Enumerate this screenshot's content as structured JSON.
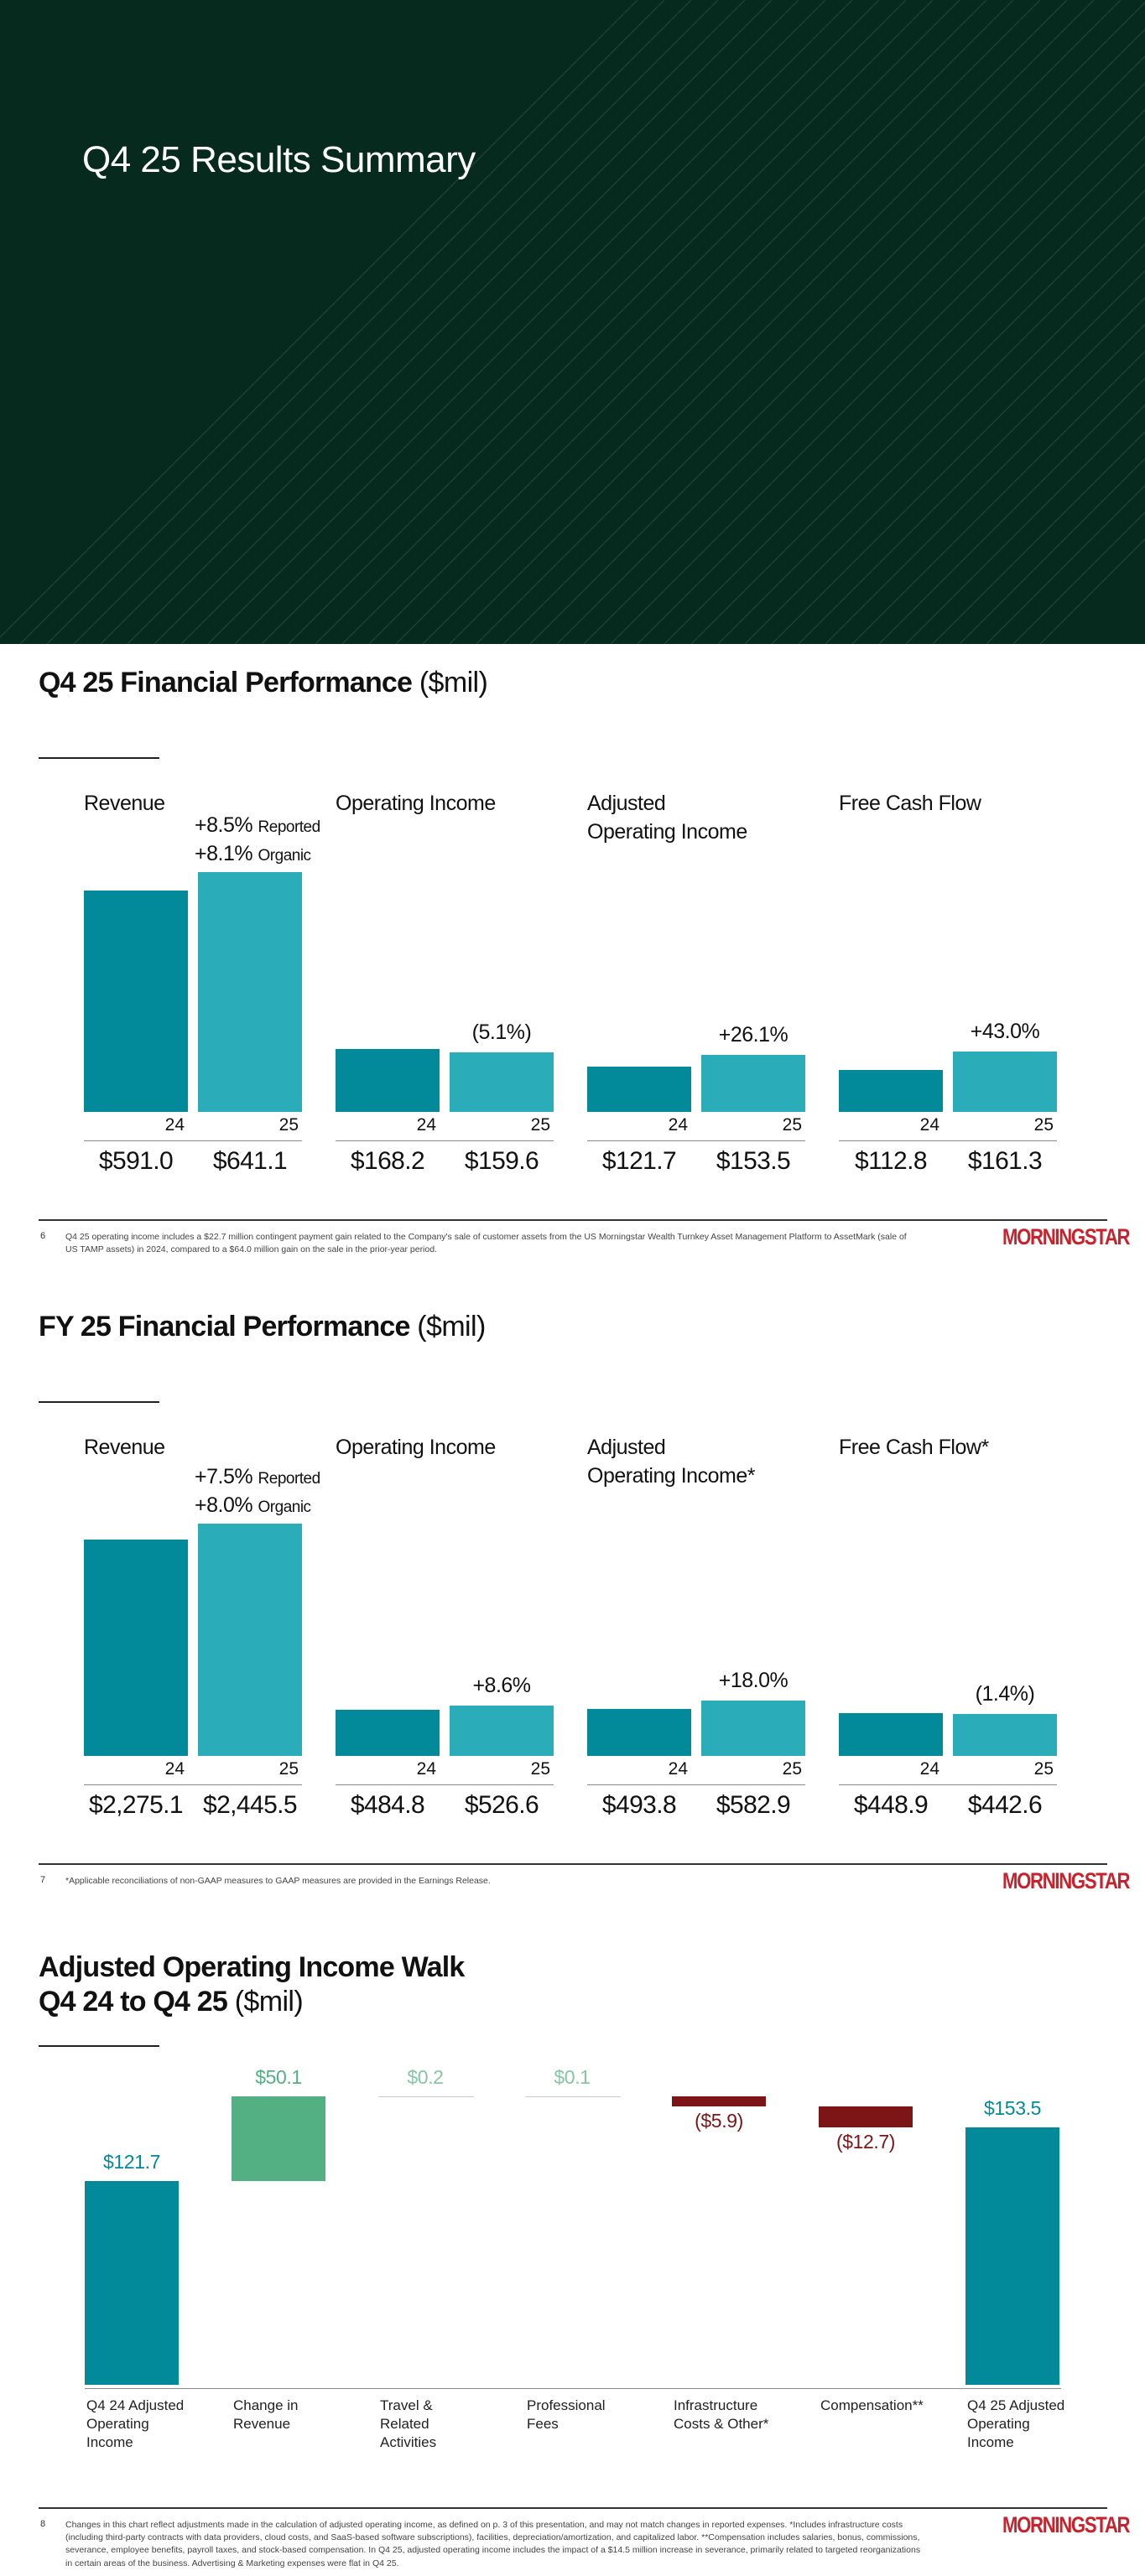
{
  "cover": {
    "title": "Q4 25 Results Summary"
  },
  "colors": {
    "dark_teal": "#028a9b",
    "light_teal": "#2aacb9",
    "green": "#52b083",
    "light_green": "#85c6a4",
    "red": "#7d1517",
    "logo_red": "#c8232c",
    "cover_bg": "#062a1e"
  },
  "logo_text": "MORNINGSTAR",
  "q4": {
    "title": "Q4 25 Financial Performance",
    "unit": "($mil)",
    "panels": [
      {
        "title": "Revenue",
        "growth_1": "+8.5%",
        "growth_1_note": "Reported",
        "growth_2": "+8.1%",
        "growth_2_note": "Organic",
        "years": [
          "24",
          "25"
        ],
        "values": [
          591.0,
          641.1
        ],
        "value_labels": [
          "$591.0",
          "$641.1"
        ]
      },
      {
        "title": "Operating Income",
        "growth": "(5.1%)",
        "years": [
          "24",
          "25"
        ],
        "values": [
          168.2,
          159.6
        ],
        "value_labels": [
          "$168.2",
          "$159.6"
        ]
      },
      {
        "title": "Adjusted\nOperating Income",
        "growth": "+26.1%",
        "years": [
          "24",
          "25"
        ],
        "values": [
          121.7,
          153.5
        ],
        "value_labels": [
          "$121.7",
          "$153.5"
        ]
      },
      {
        "title": "Free Cash Flow",
        "growth": "+43.0%",
        "years": [
          "24",
          "25"
        ],
        "values": [
          112.8,
          161.3
        ],
        "value_labels": [
          "$112.8",
          "$161.3"
        ]
      }
    ],
    "page_number": "6",
    "footnote": "Q4 25 operating income includes a $22.7 million contingent payment gain related to the Company's sale of customer assets from the US Morningstar Wealth Turnkey Asset Management Platform to AssetMark (sale of US TAMP assets) in 2024, compared to a $64.0 million gain on the sale in the prior-year period."
  },
  "fy": {
    "title": "FY 25 Financial Performance",
    "unit": "($mil)",
    "panels": [
      {
        "title": "Revenue",
        "growth_1": "+7.5%",
        "growth_1_note": "Reported",
        "growth_2": "+8.0%",
        "growth_2_note": "Organic",
        "years": [
          "24",
          "25"
        ],
        "values": [
          2275.1,
          2445.5
        ],
        "value_labels": [
          "$2,275.1",
          "$2,445.5"
        ]
      },
      {
        "title": "Operating Income",
        "growth": "+8.6%",
        "years": [
          "24",
          "25"
        ],
        "values": [
          484.8,
          526.6
        ],
        "value_labels": [
          "$484.8",
          "$526.6"
        ]
      },
      {
        "title": "Adjusted\nOperating Income*",
        "growth": "+18.0%",
        "years": [
          "24",
          "25"
        ],
        "values": [
          493.8,
          582.9
        ],
        "value_labels": [
          "$493.8",
          "$582.9"
        ]
      },
      {
        "title": "Free Cash Flow*",
        "growth": "(1.4%)",
        "years": [
          "24",
          "25"
        ],
        "values": [
          448.9,
          442.6
        ],
        "value_labels": [
          "$448.9",
          "$442.6"
        ]
      }
    ],
    "page_number": "7",
    "footnote": "*Applicable reconciliations of non-GAAP measures to GAAP measures are provided in the Earnings Release."
  },
  "walk": {
    "title_line1": "Adjusted Operating Income Walk",
    "title_line2": "Q4 24 to Q4 25",
    "unit": "($mil)",
    "page_number": "8",
    "footnote": "Changes in this chart reflect adjustments made in the calculation of adjusted operating income, as defined on p. 3 of this presentation, and may not match changes in reported expenses. *Includes infrastructure costs (including third-party contracts with data providers, cloud costs, and SaaS-based software subscriptions), facilities, depreciation/amortization, and capitalized labor. **Compensation includes salaries, bonus, commissions, severance, employee benefits, payroll taxes, and stock-based compensation. In Q4 25, adjusted operating income includes the impact of a $14.5 million increase in severance, primarily related to targeted reorganizations in certain areas of the business. Advertising & Marketing expenses were flat in Q4 25."
  },
  "chart_data": [
    {
      "type": "bar",
      "title": "Q4 25 Financial Performance ($mil)",
      "categories": [
        "Revenue",
        "Operating Income",
        "Adjusted Operating Income",
        "Free Cash Flow"
      ],
      "series": [
        {
          "name": "24",
          "values": [
            591.0,
            168.2,
            121.7,
            112.8
          ]
        },
        {
          "name": "25",
          "values": [
            641.1,
            159.6,
            153.5,
            161.3
          ]
        }
      ]
    },
    {
      "type": "bar",
      "title": "FY 25 Financial Performance ($mil)",
      "categories": [
        "Revenue",
        "Operating Income",
        "Adjusted Operating Income*",
        "Free Cash Flow*"
      ],
      "series": [
        {
          "name": "24",
          "values": [
            2275.1,
            484.8,
            493.8,
            448.9
          ]
        },
        {
          "name": "25",
          "values": [
            2445.5,
            526.6,
            582.9,
            442.6
          ]
        }
      ]
    },
    {
      "type": "bar",
      "title": "Adjusted Operating Income Walk Q4 24 to Q4 25 ($mil)",
      "categories": [
        "Q4 24 Adjusted Operating Income",
        "Change in Revenue",
        "Travel & Related Activities",
        "Professional Fees",
        "Infrastructure Costs & Other*",
        "Compensation**",
        "Q4 25 Adjusted Operating Income"
      ],
      "values": [
        121.7,
        50.1,
        0.2,
        0.1,
        -5.9,
        -12.7,
        153.5
      ],
      "value_labels": [
        "$121.7",
        "$50.1",
        "$0.2",
        "$0.1",
        "($5.9)",
        "($12.7)",
        "$153.5"
      ],
      "kinds": [
        "total",
        "increase",
        "increase",
        "increase",
        "decrease",
        "decrease",
        "total"
      ]
    }
  ]
}
